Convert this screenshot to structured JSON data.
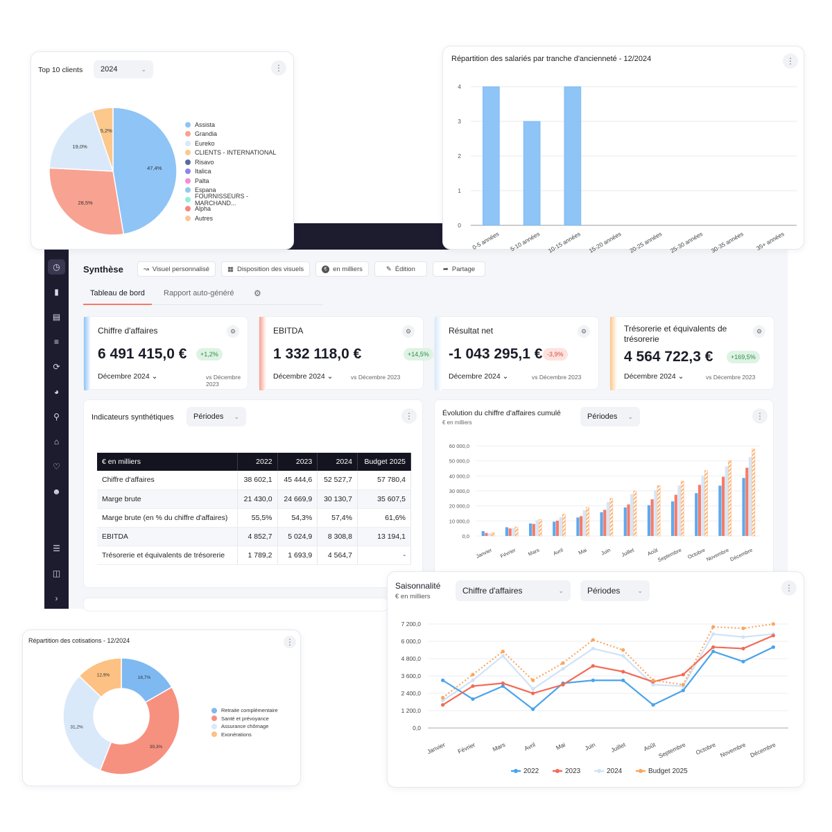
{
  "top_clients": {
    "title": "Top 10 clients",
    "year_select": "2024",
    "slice_labels": [
      "47,4%",
      "28,5%",
      "19,0%",
      "5,2%"
    ],
    "legend": [
      {
        "label": "Assista",
        "color": "#8ec4f6"
      },
      {
        "label": "Grandia",
        "color": "#f8a291"
      },
      {
        "label": "Eureko",
        "color": "#d9e9fa"
      },
      {
        "label": "CLIENTS - INTERNATIONAL",
        "color": "#fcc88c"
      },
      {
        "label": "Risavo",
        "color": "#5a6aa1"
      },
      {
        "label": "Italica",
        "color": "#8c86e6"
      },
      {
        "label": "Palta",
        "color": "#f48cd6"
      },
      {
        "label": "Espana",
        "color": "#93c9ef"
      },
      {
        "label": "FOURNISSEURS - MARCHAND...",
        "color": "#8ef0d8"
      },
      {
        "label": "Alpha",
        "color": "#f7867a"
      },
      {
        "label": "Autres",
        "color": "#f9c89a"
      }
    ],
    "chart_data": {
      "type": "pie",
      "categories": [
        "Assista",
        "Grandia",
        "Eureko",
        "CLIENTS - INTERNATIONAL"
      ],
      "values": [
        47.4,
        28.5,
        19.0,
        5.2
      ],
      "colors": [
        "#8ec4f6",
        "#f8a291",
        "#d9e9fa",
        "#fcc88c"
      ]
    }
  },
  "seniority": {
    "title": "Répartition des salariés par tranche d'ancienneté - 12/2024",
    "chart_data": {
      "type": "bar",
      "categories": [
        "0-5 années",
        "5-10 années",
        "10-15 années",
        "15-20 années",
        "20-25 années",
        "25-30 années",
        "30-35 années",
        "35+ années"
      ],
      "values": [
        4,
        3,
        4,
        0,
        0,
        0,
        0,
        0
      ],
      "ylim": [
        0,
        4
      ],
      "yticks": [
        "0",
        "1",
        "2",
        "3",
        "4"
      ],
      "color": "#8ec4f6",
      "grid": true
    }
  },
  "app": {
    "title": "Synthèse",
    "toolbar": [
      {
        "label": "Visuel personnalisé",
        "icon": "chart-line-icon"
      },
      {
        "label": "Disposition des visuels",
        "icon": "grid-icon"
      },
      {
        "label": "en milliers",
        "icon": "euro-icon"
      },
      {
        "label": "Édition",
        "icon": "pencil-icon"
      },
      {
        "label": "Partage",
        "icon": "share-icon"
      }
    ],
    "tabs": [
      "Tableau de bord",
      "Rapport auto-généré"
    ],
    "active_tab": 0,
    "sidebar_icons": [
      "dashboard-icon",
      "bar-chart-icon",
      "book-icon",
      "stack-icon",
      "refresh-icon",
      "pie-icon",
      "search-icon",
      "home-icon",
      "heart-pulse-icon",
      "users-icon",
      "list-icon",
      "file-icon",
      "chevron-right-icon"
    ]
  },
  "kpis": [
    {
      "label": "Chiffre d'affaires",
      "value": "6 491 415,0 €",
      "badge": "+1,2%",
      "badge_color": "#2e8b4a",
      "badge_bg": "#dff3e4",
      "period": "Décembre 2024",
      "vs": "vs Décembre 2023",
      "accent": "#8ec4f6"
    },
    {
      "label": "EBITDA",
      "value": "1 332 118,0 €",
      "badge": "+14,5%",
      "badge_color": "#2e8b4a",
      "badge_bg": "#dff3e4",
      "period": "Décembre 2024",
      "vs": "vs Décembre 2023",
      "accent": "#f8a291"
    },
    {
      "label": "Résultat net",
      "value": "-1 043 295,1 €",
      "badge": "-3,9%",
      "badge_color": "#d24a3a",
      "badge_bg": "#fde3df",
      "period": "Décembre 2024",
      "vs": "vs Décembre 2023",
      "accent": "#d9e9fa"
    },
    {
      "label": "Trésorerie et équivalents de trésorerie",
      "value": "4 564 722,3 €",
      "badge": "+169,5%",
      "badge_color": "#2e8b4a",
      "badge_bg": "#dff3e4",
      "period": "Décembre 2024",
      "vs": "vs Décembre 2023",
      "accent": "#fcc88c"
    }
  ],
  "indicators": {
    "title": "Indicateurs synthétiques",
    "select": "Périodes",
    "headers": [
      "€ en milliers",
      "2022",
      "2023",
      "2024",
      "Budget 2025"
    ],
    "rows": [
      [
        "Chiffre d'affaires",
        "38 602,1",
        "45 444,6",
        "52 527,7",
        "57 780,4"
      ],
      [
        "Marge brute",
        "21 430,0",
        "24 669,9",
        "30 130,7",
        "35 607,5"
      ],
      [
        "Marge brute (en % du chiffre d'affaires)",
        "55,5%",
        "54,3%",
        "57,4%",
        "61,6%"
      ],
      [
        "EBITDA",
        "4 852,7",
        "5 024,9",
        "8 308,8",
        "13 194,1"
      ],
      [
        "Trésorerie et équivalents de trésorerie",
        "1 789,2",
        "1 693,9",
        "4 564,7",
        "-"
      ]
    ]
  },
  "ca_cumule": {
    "title": "Évolution du chiffre d'affaires cumulé",
    "subtitle": "€ en milliers",
    "select": "Périodes",
    "chart_data": {
      "type": "bar",
      "categories": [
        "Janvier",
        "Février",
        "Mars",
        "Avril",
        "Mai",
        "Juin",
        "Juillet",
        "Août",
        "Septembre",
        "Octobre",
        "Novembre",
        "Décembre"
      ],
      "ylim": [
        0,
        60000
      ],
      "yticks": [
        "0,0",
        "10 000,0",
        "20 000,0",
        "30 000,0",
        "40 000,0",
        "50 000,0",
        "60 000,0"
      ],
      "series": [
        {
          "name": "2022",
          "color": "#5ea9ee",
          "values": [
            3200,
            5800,
            8300,
            9500,
            12300,
            15800,
            19000,
            20500,
            23000,
            28500,
            33500,
            38600
          ]
        },
        {
          "name": "2023",
          "color": "#f47c6a",
          "values": [
            2000,
            5000,
            8000,
            10200,
            13200,
            17400,
            21000,
            24400,
            27400,
            34000,
            39400,
            45400
          ]
        },
        {
          "name": "2024",
          "color": "#d6e6f7",
          "values": [
            1800,
            5400,
            10500,
            12600,
            17200,
            22600,
            27800,
            30400,
            33600,
            40200,
            46400,
            52500
          ]
        },
        {
          "name": "Budget 2025",
          "color": "#fcb57a",
          "values": [
            2300,
            6000,
            11000,
            14400,
            19000,
            25000,
            30000,
            33500,
            36500,
            43500,
            50200,
            57800
          ]
        }
      ]
    }
  },
  "saisonnalite": {
    "title": "Saisonnalité",
    "subtitle": "€ en milliers",
    "select_metric": "Chiffre d'affaires",
    "select_period": "Périodes",
    "chart_data": {
      "type": "line",
      "categories": [
        "Janvier",
        "Février",
        "Mars",
        "Avril",
        "Mai",
        "Juin",
        "Juillet",
        "Août",
        "Septembre",
        "Octobre",
        "Novembre",
        "Décembre"
      ],
      "ylim": [
        0,
        7200
      ],
      "yticks": [
        "0,0",
        "1 200,0",
        "2 400,0",
        "3 600,0",
        "4 800,0",
        "6 000,0",
        "7 200,0"
      ],
      "series": [
        {
          "name": "2022",
          "color": "#4aa3ea",
          "dashed": false,
          "values": [
            3300,
            2000,
            2900,
            1300,
            3100,
            3300,
            3300,
            1600,
            2600,
            5300,
            4600,
            5600
          ]
        },
        {
          "name": "2023",
          "color": "#f26a55",
          "dashed": false,
          "values": [
            1600,
            2900,
            3100,
            2400,
            3000,
            4300,
            3900,
            3200,
            3700,
            5600,
            5500,
            6400
          ]
        },
        {
          "name": "2024",
          "color": "#cfe3f6",
          "dashed": false,
          "values": [
            1900,
            3300,
            5000,
            2700,
            4100,
            5500,
            5000,
            3000,
            2900,
            6500,
            6300,
            6500
          ]
        },
        {
          "name": "Budget 2025",
          "color": "#fba55e",
          "dashed": true,
          "values": [
            2100,
            3700,
            5300,
            3300,
            4500,
            6100,
            5400,
            3300,
            3000,
            7000,
            6900,
            7200
          ]
        }
      ]
    }
  },
  "cotisations": {
    "title": "Répartition des cotisations - 12/2024",
    "legend": [
      {
        "label": "Retraite complémentaire",
        "color": "#7eb9f2"
      },
      {
        "label": "Santé et prévoyance",
        "color": "#f7917f"
      },
      {
        "label": "Assurance chômage",
        "color": "#d9e9fa"
      },
      {
        "label": "Exonérations",
        "color": "#fcc183"
      }
    ],
    "slice_labels": [
      "16,7%",
      "39,3%",
      "31,2%",
      "12,9%"
    ],
    "chart_data": {
      "type": "pie",
      "categories": [
        "Retraite complémentaire",
        "Santé et prévoyance",
        "Assurance chômage",
        "Exonérations"
      ],
      "values": [
        16.7,
        39.3,
        31.2,
        12.9
      ],
      "colors": [
        "#7eb9f2",
        "#f7917f",
        "#d9e9fa",
        "#fcc183"
      ]
    }
  }
}
